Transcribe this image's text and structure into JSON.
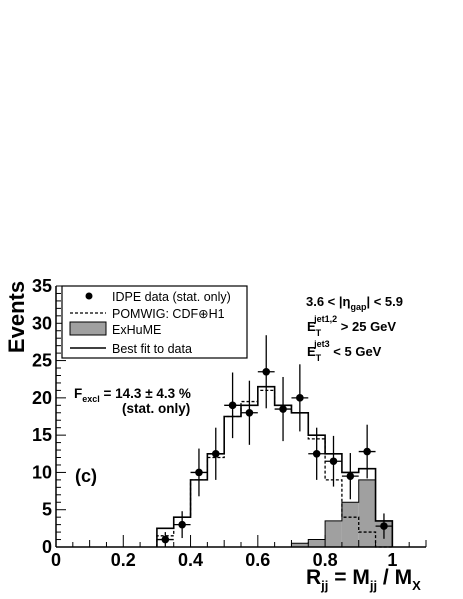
{
  "chart_data": {
    "type": "histogram",
    "ylabel": "Events",
    "xlabel": {
      "main": "R",
      "sub": "jj",
      "eq": " = M",
      "sub2": "jj",
      "rest": " / M",
      "sub3": "X"
    },
    "xlim": [
      0,
      1.1
    ],
    "ylim": [
      0,
      35
    ],
    "x_ticks": [
      0,
      0.2,
      0.4,
      0.6,
      0.8,
      1
    ],
    "y_ticks": [
      0,
      5,
      10,
      15,
      20,
      25,
      30,
      35
    ],
    "bin_edges": [
      0.3,
      0.35,
      0.4,
      0.45,
      0.5,
      0.55,
      0.6,
      0.65,
      0.7,
      0.75,
      0.8,
      0.85,
      0.9,
      0.95,
      1.0
    ],
    "series": [
      {
        "name": "IDPE data (stat. only)",
        "style": "points",
        "x": [
          0.325,
          0.375,
          0.425,
          0.475,
          0.525,
          0.575,
          0.625,
          0.675,
          0.725,
          0.775,
          0.825,
          0.875,
          0.925,
          0.975
        ],
        "y": [
          1,
          3,
          10,
          12.5,
          19,
          18,
          23.5,
          18.5,
          20,
          12.5,
          11.5,
          9.5,
          12.8,
          2.8
        ],
        "yerr": [
          1,
          1.8,
          3.2,
          3.5,
          4.4,
          4.3,
          4.9,
          4.3,
          4.5,
          3.5,
          3.4,
          3.1,
          3.6,
          1.7
        ]
      },
      {
        "name": "POMWIG: CDF⊕H1",
        "style": "dashed-histogram",
        "values": [
          1.5,
          4,
          9,
          12,
          17.5,
          19.5,
          21,
          19,
          18,
          14.5,
          9,
          4,
          2,
          0
        ]
      },
      {
        "name": "ExHuME",
        "style": "filled-histogram",
        "color": "#a0a0a0",
        "values": [
          0,
          0,
          0,
          0,
          0,
          0,
          0,
          0,
          0.5,
          1,
          3.5,
          6,
          9,
          3.5
        ]
      },
      {
        "name": "Best fit to data",
        "style": "solid-histogram",
        "values": [
          2.5,
          4,
          9,
          12.5,
          17.5,
          19,
          21.5,
          19,
          18,
          15,
          12.5,
          10,
          10.5,
          3.5
        ]
      }
    ],
    "legend_position": "top-left",
    "annotations": {
      "eta_gap": {
        "pre": "3.6 < |η",
        "sub": "gap",
        "post": "| < 5.9"
      },
      "et12": {
        "pre": "E",
        "sub": "T",
        "sup": "jet1,2",
        "post": " > 25 GeV"
      },
      "et3": {
        "pre": "E",
        "sub": "T",
        "sup": "jet3",
        "post": " < 5 GeV"
      },
      "fexcl": {
        "pre": "F",
        "sub": "excl",
        "post": " = 14.3 ± 4.3 %"
      },
      "fexcl_note": "(stat. only)",
      "panel": "(c)"
    },
    "grid": false
  }
}
